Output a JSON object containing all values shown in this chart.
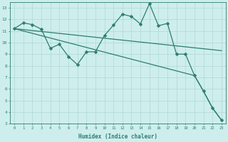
{
  "line1_x": [
    0,
    1,
    2,
    3,
    4,
    5,
    6,
    7,
    8,
    9,
    10,
    11,
    12,
    13,
    14,
    15,
    16,
    17,
    18,
    19,
    20,
    21,
    22,
    23
  ],
  "line1_y": [
    11.2,
    11.7,
    11.55,
    11.15,
    9.5,
    9.85,
    8.8,
    8.1,
    9.2,
    9.2,
    10.6,
    11.5,
    12.45,
    12.25,
    11.6,
    13.35,
    11.45,
    11.65,
    9.0,
    9.0,
    7.15,
    5.8,
    4.35,
    3.3
  ],
  "line2_x": [
    0,
    23
  ],
  "line2_y": [
    11.2,
    9.3
  ],
  "line3_x": [
    0,
    20,
    21,
    22,
    23
  ],
  "line3_y": [
    11.2,
    7.15,
    5.8,
    4.35,
    3.3
  ],
  "color": "#2e7d6e",
  "background": "#cdeeed",
  "grid_color": "#afd8d4",
  "xlabel": "Humidex (Indice chaleur)",
  "ylim": [
    3,
    13.5
  ],
  "xlim": [
    -0.5,
    23.5
  ],
  "yticks": [
    3,
    4,
    5,
    6,
    7,
    8,
    9,
    10,
    11,
    12,
    13
  ],
  "xticks": [
    0,
    1,
    2,
    3,
    4,
    5,
    6,
    7,
    8,
    9,
    10,
    11,
    12,
    13,
    14,
    15,
    16,
    17,
    18,
    19,
    20,
    21,
    22,
    23
  ],
  "markersize": 2.5,
  "linewidth": 0.9
}
